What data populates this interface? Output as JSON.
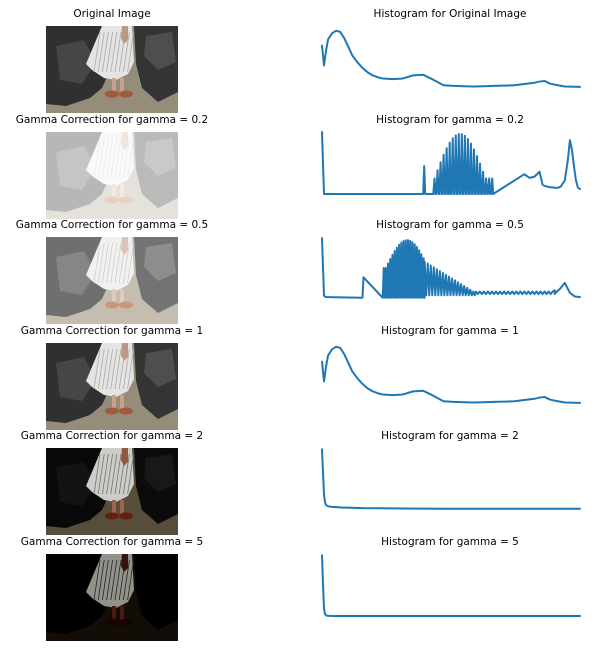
{
  "chart_data": [
    {
      "type": "image",
      "title": "Original Image",
      "brightness_gamma": 1
    },
    {
      "type": "line",
      "title": "Histogram for Original Image",
      "x": [
        0,
        2,
        4,
        6,
        10,
        14,
        18,
        22,
        26,
        30,
        35,
        40,
        45,
        50,
        55,
        60,
        70,
        80,
        90,
        100,
        110,
        120,
        130,
        140,
        150,
        160,
        170,
        180,
        190,
        200,
        210,
        215,
        220,
        225,
        230,
        240,
        255
      ],
      "values": [
        0.7,
        0.38,
        0.62,
        0.8,
        0.9,
        0.94,
        0.92,
        0.82,
        0.68,
        0.54,
        0.43,
        0.34,
        0.27,
        0.22,
        0.19,
        0.17,
        0.16,
        0.17,
        0.22,
        0.23,
        0.15,
        0.06,
        0.05,
        0.045,
        0.04,
        0.045,
        0.05,
        0.055,
        0.06,
        0.08,
        0.1,
        0.12,
        0.13,
        0.09,
        0.07,
        0.04,
        0.035
      ]
    },
    {
      "type": "image",
      "title": "Gamma Correction for gamma = 0.2",
      "brightness_gamma": 0.2
    },
    {
      "type": "line",
      "title": "Histogram for gamma = 0.2",
      "x": [
        0,
        2,
        4,
        6,
        100,
        101,
        102,
        103,
        125,
        126,
        127,
        128,
        200,
        205,
        210,
        215,
        218,
        220,
        225,
        230,
        233,
        236,
        240,
        243,
        245,
        247,
        249,
        251,
        253,
        255
      ],
      "values": [
        1.0,
        0.0,
        0.0,
        0.0,
        0.0,
        0.45,
        0.0,
        0.0,
        0.0,
        0.62,
        0.0,
        0.0,
        0.32,
        0.26,
        0.28,
        0.36,
        0.15,
        0.13,
        0.11,
        0.1,
        0.1,
        0.12,
        0.22,
        0.55,
        0.87,
        0.72,
        0.45,
        0.22,
        0.1,
        0.08
      ]
    },
    {
      "type": "image",
      "title": "Gamma Correction for gamma = 0.5",
      "brightness_gamma": 0.5
    },
    {
      "type": "line",
      "title": "Histogram for gamma = 0.5",
      "x": [
        0,
        2,
        4,
        6,
        40,
        41,
        60,
        61,
        230,
        235,
        240,
        245,
        250,
        255
      ],
      "values": [
        0.98,
        0.05,
        0.03,
        0.03,
        0.02,
        0.35,
        0.02,
        0.5,
        0.14,
        0.16,
        0.26,
        0.1,
        0.04,
        0.03
      ]
    },
    {
      "type": "image",
      "title": "Gamma Correction for gamma = 1",
      "brightness_gamma": 1
    },
    {
      "type": "line",
      "title": "Histogram for gamma = 1",
      "x": [
        0,
        2,
        4,
        6,
        10,
        14,
        18,
        22,
        26,
        30,
        35,
        40,
        45,
        50,
        55,
        60,
        70,
        80,
        90,
        100,
        110,
        120,
        130,
        140,
        150,
        160,
        170,
        180,
        190,
        200,
        210,
        215,
        220,
        225,
        230,
        240,
        255
      ],
      "values": [
        0.7,
        0.38,
        0.62,
        0.8,
        0.9,
        0.94,
        0.92,
        0.82,
        0.68,
        0.54,
        0.43,
        0.34,
        0.27,
        0.22,
        0.19,
        0.17,
        0.16,
        0.17,
        0.22,
        0.23,
        0.15,
        0.06,
        0.05,
        0.045,
        0.04,
        0.045,
        0.05,
        0.055,
        0.06,
        0.08,
        0.1,
        0.12,
        0.13,
        0.09,
        0.07,
        0.04,
        0.035
      ]
    },
    {
      "type": "image",
      "title": "Gamma Correction for gamma = 2",
      "brightness_gamma": 2
    },
    {
      "type": "line",
      "title": "Histogram for gamma = 2",
      "x": [
        0,
        1,
        2,
        3,
        4,
        6,
        10,
        20,
        40,
        80,
        120,
        160,
        200,
        255
      ],
      "values": [
        0.98,
        0.6,
        0.25,
        0.12,
        0.08,
        0.06,
        0.05,
        0.04,
        0.03,
        0.025,
        0.02,
        0.02,
        0.02,
        0.02
      ]
    },
    {
      "type": "image",
      "title": "Gamma Correction for gamma = 5",
      "brightness_gamma": 5
    },
    {
      "type": "line",
      "title": "Histogram for gamma = 5",
      "x": [
        0,
        1,
        2,
        3,
        4,
        5,
        10,
        255
      ],
      "values": [
        0.98,
        0.5,
        0.12,
        0.03,
        0.01,
        0.005,
        0.0,
        0.0
      ]
    }
  ]
}
